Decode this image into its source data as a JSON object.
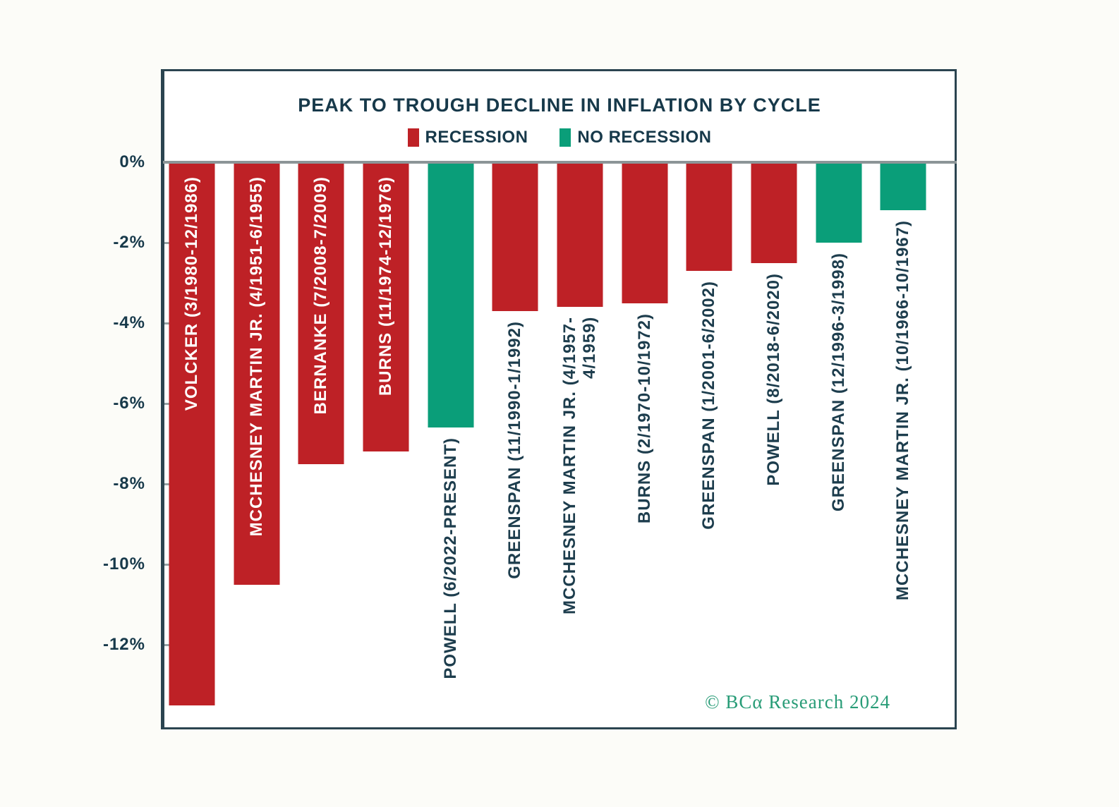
{
  "page": {
    "background": "#fcfcf8"
  },
  "chart": {
    "title": "PEAK TO TROUGH DECLINE IN INFLATION BY CYCLE",
    "legend": {
      "items": [
        {
          "label": "RECESSION",
          "color": "#be2126"
        },
        {
          "label": "NO RECESSION",
          "color": "#0a9e79"
        }
      ]
    },
    "credit": "© BCα Research 2024",
    "colors": {
      "recession": "#be2126",
      "no_recession": "#0a9e79",
      "text": "#17394a",
      "inside_label": "#ffffff",
      "credit": "#289c77",
      "border": "#2b4450",
      "zero_line": "#8c9597"
    }
  },
  "chart_data": {
    "type": "bar",
    "title": "PEAK TO TROUGH DECLINE IN INFLATION BY CYCLE",
    "xlabel": "",
    "ylabel": "",
    "unit": "%",
    "ylim": [
      -14.05,
      0
    ],
    "grid": false,
    "legend_position": "top-center",
    "ytick_labels": [
      "0%",
      "-2%",
      "-4%",
      "-6%",
      "-8%",
      "-10%",
      "-12%"
    ],
    "ytick_values": [
      0,
      -2,
      -4,
      -6,
      -8,
      -10,
      -12
    ],
    "bars": [
      {
        "label": "VOLCKER (3/1980-12/1986)",
        "value": -13.5,
        "group": "RECESSION",
        "label_placement": "inside"
      },
      {
        "label": "MCCHESNEY MARTIN JR. (4/1951-6/1955)",
        "value": -10.5,
        "group": "RECESSION",
        "label_placement": "inside"
      },
      {
        "label": "BERNANKE (7/2008-7/2009)",
        "value": -7.5,
        "group": "RECESSION",
        "label_placement": "inside"
      },
      {
        "label": "BURNS (11/1974-12/1976)",
        "value": -7.2,
        "group": "RECESSION",
        "label_placement": "inside"
      },
      {
        "label": "POWELL (6/2022-PRESENT)",
        "value": -6.6,
        "group": "NO RECESSION",
        "label_placement": "below"
      },
      {
        "label": "GREENSPAN (11/1990-1/1992)",
        "value": -3.7,
        "group": "RECESSION",
        "label_placement": "below"
      },
      {
        "label": "MCCHESNEY MARTIN JR. (4/1957-\n4/1959)",
        "value": -3.6,
        "group": "RECESSION",
        "label_placement": "below"
      },
      {
        "label": "BURNS (2/1970-10/1972)",
        "value": -3.5,
        "group": "RECESSION",
        "label_placement": "below"
      },
      {
        "label": "GREENSPAN (1/2001-6/2002)",
        "value": -2.7,
        "group": "RECESSION",
        "label_placement": "below"
      },
      {
        "label": "POWELL (8/2018-6/2020)",
        "value": -2.5,
        "group": "RECESSION",
        "label_placement": "below"
      },
      {
        "label": "GREENSPAN (12/1996-3/1998)",
        "value": -2.0,
        "group": "NO RECESSION",
        "label_placement": "below"
      },
      {
        "label": "MCCHESNEY MARTIN JR. (10/1966-10/1967)",
        "value": -1.2,
        "group": "NO RECESSION",
        "label_placement": "below"
      }
    ]
  }
}
